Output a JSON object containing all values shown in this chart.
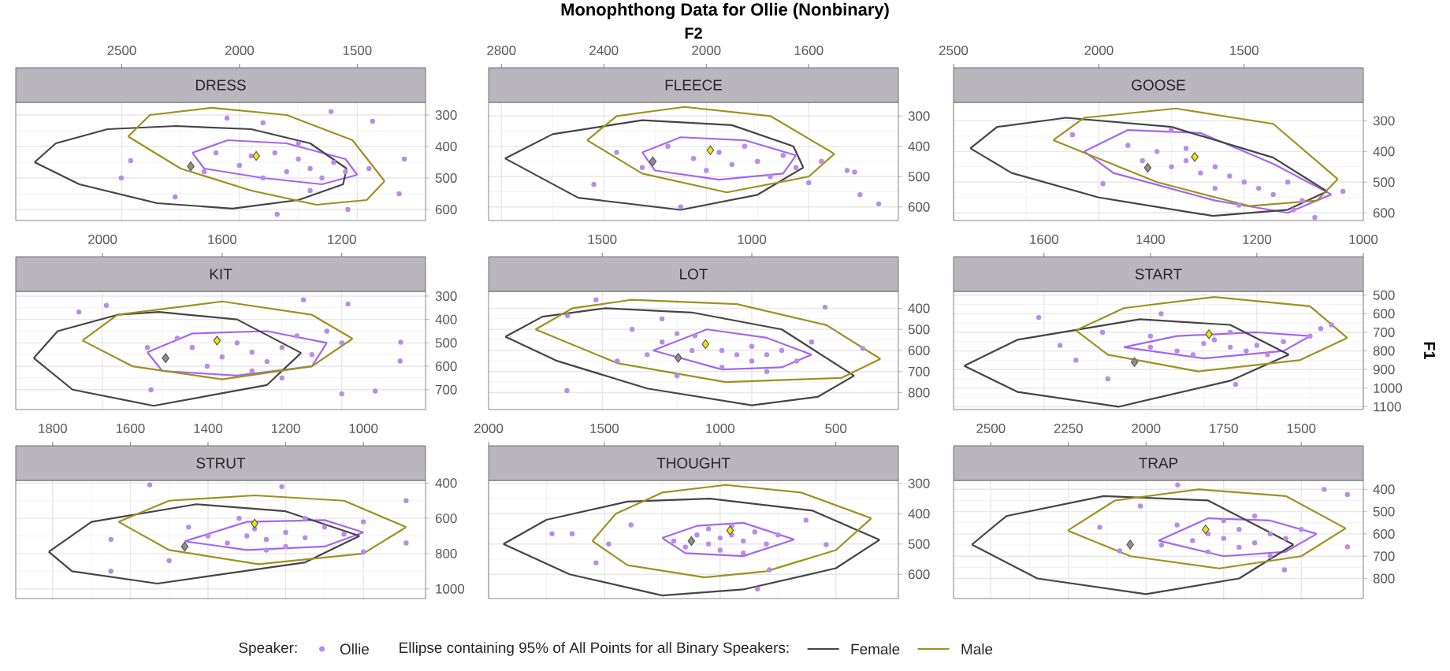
{
  "chart_data": [
    {
      "type": "scatter",
      "title": "DRESS",
      "xlim": [
        2950,
        1210
      ],
      "xticks": [
        2500,
        2000,
        1500
      ],
      "ylim": [
        635,
        260
      ],
      "yticks": [
        300,
        400,
        500,
        600
      ],
      "grid": true,
      "series": [
        {
          "color": "#b98ce8",
          "marker": "circle",
          "x": [
            1611,
            1435,
            1300,
            1322,
            2502,
            2462,
            2273,
            1840,
            1540,
            2053,
            1900,
            1850,
            1750,
            1700,
            1950,
            1800,
            1650,
            2000,
            1900,
            1600,
            2100,
            1750,
            1550,
            2150,
            1700,
            1450
          ],
          "values": [
            289,
            320,
            440,
            550,
            500,
            445,
            560,
            615,
            600,
            310,
            325,
            420,
            440,
            470,
            430,
            480,
            500,
            460,
            500,
            450,
            420,
            390,
            480,
            480,
            540,
            470
          ]
        },
        {
          "type": "line",
          "color": "#a566f2",
          "x": [
            2200,
            2050,
            1800,
            1550,
            1500
          ],
          "values": [
            420,
            380,
            390,
            440,
            490
          ]
        },
        {
          "type": "line",
          "color": "#a566f2",
          "x": [
            1500,
            1650,
            1900,
            2150,
            2200
          ],
          "values": [
            490,
            520,
            500,
            470,
            420
          ]
        },
        {
          "type": "line",
          "color": "#454545",
          "x": [
            2870,
            2780,
            2560,
            2270,
            1950,
            1700,
            1545
          ],
          "values": [
            450,
            390,
            345,
            335,
            345,
            390,
            470
          ]
        },
        {
          "type": "line",
          "color": "#454545",
          "x": [
            1545,
            1560,
            1750,
            2030,
            2350,
            2680,
            2870
          ],
          "values": [
            470,
            520,
            570,
            597,
            580,
            520,
            450
          ]
        },
        {
          "type": "line",
          "color": "#a09020",
          "x": [
            2473,
            2380,
            2118,
            1800,
            1520,
            1384
          ],
          "values": [
            368,
            300,
            277,
            300,
            380,
            510
          ]
        },
        {
          "type": "line",
          "color": "#a09020",
          "x": [
            1384,
            1460,
            1673,
            1950,
            2250,
            2473
          ],
          "values": [
            510,
            570,
            585,
            540,
            470,
            368
          ]
        },
        {
          "color": "#8f8f8f",
          "marker": "diamond",
          "x": [
            2207
          ],
          "values": [
            463
          ]
        },
        {
          "color": "#f2e600",
          "marker": "diamond",
          "x": [
            1929
          ],
          "values": [
            430
          ]
        }
      ]
    },
    {
      "type": "scatter",
      "title": "FLEECE",
      "xlabel": "F2",
      "annotations": [
        "Monophthong Data for Ollie (Nonbinary)"
      ],
      "xlim": [
        2850,
        1250
      ],
      "xticks": [
        2800,
        2400,
        2000,
        1600
      ],
      "ylim": [
        645,
        255
      ],
      "yticks": [
        300,
        400,
        500,
        600
      ],
      "grid": true,
      "series": [
        {
          "color": "#b98ce8",
          "marker": "circle",
          "x": [
            2350,
            2250,
            2150,
            2050,
            2000,
            1950,
            1900,
            1850,
            1800,
            1750,
            1700,
            1650,
            1600,
            1550,
            1450,
            1327,
            1421,
            2439,
            2100,
            1400
          ],
          "values": [
            420,
            470,
            400,
            440,
            480,
            420,
            460,
            400,
            450,
            500,
            430,
            470,
            520,
            450,
            480,
            590,
            485,
            526,
            600,
            560
          ]
        },
        {
          "type": "line",
          "color": "#a566f2",
          "x": [
            2250,
            2100,
            1850,
            1650
          ],
          "values": [
            420,
            370,
            380,
            430
          ]
        },
        {
          "type": "line",
          "color": "#a566f2",
          "x": [
            1650,
            1700,
            1950,
            2200,
            2250
          ],
          "values": [
            430,
            490,
            510,
            480,
            420
          ]
        },
        {
          "type": "line",
          "color": "#454545",
          "x": [
            2786,
            2600,
            2250,
            1900,
            1660,
            1621
          ],
          "values": [
            440,
            360,
            314,
            330,
            400,
            470
          ]
        },
        {
          "type": "line",
          "color": "#454545",
          "x": [
            1621,
            1800,
            2100,
            2500,
            2786
          ],
          "values": [
            470,
            560,
            610,
            570,
            440
          ]
        },
        {
          "type": "line",
          "color": "#a09020",
          "x": [
            2465,
            2350,
            2085,
            1750,
            1500
          ],
          "values": [
            380,
            300,
            270,
            300,
            425
          ]
        },
        {
          "type": "line",
          "color": "#a09020",
          "x": [
            1500,
            1600,
            1920,
            2250,
            2465
          ],
          "values": [
            425,
            500,
            552,
            490,
            380
          ]
        },
        {
          "color": "#8f8f8f",
          "marker": "diamond",
          "x": [
            2209
          ],
          "values": [
            450
          ]
        },
        {
          "color": "#f2e600",
          "marker": "diamond",
          "x": [
            1984
          ],
          "values": [
            413
          ]
        }
      ]
    },
    {
      "type": "scatter",
      "title": "GOOSE",
      "xlim": [
        2500,
        1090
      ],
      "xticks": [
        2500,
        2000,
        1500
      ],
      "ylim": [
        625,
        240
      ],
      "yticks": [
        300,
        400,
        500,
        600
      ],
      "grid": true,
      "series": [
        {
          "color": "#b98ce8",
          "marker": "circle",
          "x": [
            2091,
            1160,
            1257,
            1330,
            1518,
            1986,
            1751,
            1800,
            1700,
            1650,
            1600,
            1550,
            1750,
            1500,
            1450,
            1400,
            1700,
            1850,
            1900,
            1350,
            1300,
            1600
          ],
          "values": [
            345,
            530,
            615,
            590,
            575,
            505,
            330,
            400,
            430,
            470,
            450,
            480,
            450,
            500,
            520,
            540,
            390,
            430,
            380,
            500,
            560,
            520
          ]
        },
        {
          "type": "line",
          "color": "#a566f2",
          "x": [
            2050,
            1900,
            1650,
            1400,
            1200
          ],
          "values": [
            400,
            330,
            340,
            440,
            540
          ]
        },
        {
          "type": "line",
          "color": "#a566f2",
          "x": [
            1200,
            1350,
            1600,
            1950,
            2050
          ],
          "values": [
            540,
            600,
            560,
            470,
            400
          ]
        },
        {
          "type": "line",
          "color": "#454545",
          "x": [
            2442,
            2350,
            2113,
            1750,
            1400,
            1215
          ],
          "values": [
            390,
            320,
            290,
            320,
            420,
            530
          ]
        },
        {
          "type": "line",
          "color": "#454545",
          "x": [
            1215,
            1350,
            1608,
            2000,
            2300,
            2442
          ],
          "values": [
            530,
            590,
            610,
            550,
            470,
            390
          ]
        },
        {
          "type": "line",
          "color": "#a09020",
          "x": [
            2157,
            2050,
            1735,
            1400,
            1178
          ],
          "values": [
            363,
            290,
            260,
            310,
            490
          ]
        },
        {
          "type": "line",
          "color": "#a09020",
          "x": [
            1178,
            1250,
            1482,
            1800,
            2157
          ],
          "values": [
            490,
            560,
            578,
            500,
            363
          ]
        },
        {
          "color": "#8f8f8f",
          "marker": "diamond",
          "x": [
            1832
          ],
          "values": [
            453
          ]
        },
        {
          "color": "#f2e600",
          "marker": "diamond",
          "x": [
            1670
          ],
          "values": [
            418
          ]
        }
      ]
    },
    {
      "type": "scatter",
      "title": "KIT",
      "xlim": [
        2290,
        920
      ],
      "xticks": [
        2000,
        1600,
        1200
      ],
      "ylim": [
        785,
        280
      ],
      "yticks": [
        300,
        400,
        500,
        600,
        700
      ],
      "grid": true,
      "series": [
        {
          "color": "#b98ce8",
          "marker": "circle",
          "x": [
            2079,
            1987,
            1838,
            1003,
            1005,
            1088,
            1200,
            1179,
            1328,
            1700,
            1600,
            1550,
            1500,
            1450,
            1650,
            1750,
            1400,
            1350,
            1300,
            1500,
            1850,
            1250,
            1200,
            1400
          ],
          "values": [
            368,
            340,
            701,
            497,
            578,
            706,
            718,
            334,
            316,
            520,
            560,
            500,
            540,
            580,
            600,
            480,
            520,
            470,
            550,
            620,
            520,
            450,
            500,
            650
          ]
        },
        {
          "type": "line",
          "color": "#a566f2",
          "x": [
            1850,
            1700,
            1450,
            1250
          ],
          "values": [
            540,
            460,
            450,
            500
          ]
        },
        {
          "type": "line",
          "color": "#a566f2",
          "x": [
            1250,
            1300,
            1550,
            1800,
            1850
          ],
          "values": [
            500,
            600,
            640,
            620,
            540
          ]
        },
        {
          "type": "line",
          "color": "#454545",
          "x": [
            2230,
            2150,
            1950,
            1811,
            1550,
            1336
          ],
          "values": [
            565,
            450,
            380,
            368,
            400,
            543
          ]
        },
        {
          "type": "line",
          "color": "#454545",
          "x": [
            1336,
            1450,
            1829,
            2100,
            2230
          ],
          "values": [
            543,
            680,
            769,
            700,
            565
          ]
        },
        {
          "type": "line",
          "color": "#a09020",
          "x": [
            2067,
            1950,
            1600,
            1300,
            1164
          ],
          "values": [
            490,
            380,
            323,
            380,
            482
          ]
        },
        {
          "type": "line",
          "color": "#a09020",
          "x": [
            1164,
            1300,
            1600,
            1900,
            2067
          ],
          "values": [
            482,
            600,
            656,
            600,
            490
          ]
        },
        {
          "color": "#8f8f8f",
          "marker": "diamond",
          "x": [
            1789
          ],
          "values": [
            565
          ]
        },
        {
          "color": "#f2e600",
          "marker": "diamond",
          "x": [
            1617
          ],
          "values": [
            490
          ]
        }
      ]
    },
    {
      "type": "scatter",
      "title": "LOT",
      "xlim": [
        1880,
        510
      ],
      "xticks": [
        1500,
        1000
      ],
      "ylim": [
        880,
        320
      ],
      "yticks": [
        400,
        500,
        600,
        700,
        800
      ],
      "grid": true,
      "series": [
        {
          "color": "#b98ce8",
          "marker": "circle",
          "x": [
            755,
            629,
            1618,
            1521,
            1616,
            1250,
            1190,
            1100,
            1050,
            1000,
            950,
            1200,
            1300,
            1000,
            900,
            850,
            1350,
            1400,
            1100,
            950,
            1250,
            800,
            1450,
            1300
          ],
          "values": [
            395,
            590,
            790,
            360,
            435,
            520,
            530,
            600,
            620,
            580,
            620,
            600,
            560,
            650,
            600,
            650,
            620,
            500,
            680,
            700,
            720,
            560,
            650,
            450
          ]
        },
        {
          "type": "line",
          "color": "#a566f2",
          "x": [
            1330,
            1150,
            950,
            800
          ],
          "values": [
            600,
            500,
            540,
            620
          ]
        },
        {
          "type": "line",
          "color": "#a566f2",
          "x": [
            800,
            900,
            1100,
            1330
          ],
          "values": [
            620,
            680,
            690,
            600
          ]
        },
        {
          "type": "line",
          "color": "#454545",
          "x": [
            1824,
            1700,
            1490,
            1200,
            900,
            658
          ],
          "values": [
            535,
            440,
            400,
            420,
            500,
            720
          ]
        },
        {
          "type": "line",
          "color": "#454545",
          "x": [
            658,
            780,
            1000,
            1350,
            1650,
            1824
          ],
          "values": [
            720,
            820,
            860,
            780,
            650,
            535
          ]
        },
        {
          "type": "line",
          "color": "#a09020",
          "x": [
            1723,
            1600,
            1403,
            1050,
            750,
            570
          ],
          "values": [
            500,
            400,
            360,
            380,
            480,
            640
          ]
        },
        {
          "type": "line",
          "color": "#a09020",
          "x": [
            570,
            700,
            1088,
            1450,
            1723
          ],
          "values": [
            640,
            730,
            750,
            660,
            500
          ]
        },
        {
          "color": "#8f8f8f",
          "marker": "diamond",
          "x": [
            1246
          ],
          "values": [
            635
          ]
        },
        {
          "color": "#f2e600",
          "marker": "diamond",
          "x": [
            1155
          ],
          "values": [
            570
          ]
        }
      ]
    },
    {
      "type": "scatter",
      "title": "START",
      "ylabel": "F1",
      "xlim": [
        1770,
        1000
      ],
      "xticks": [
        1600,
        1400,
        1200,
        1000
      ],
      "ylim": [
        1115,
        480
      ],
      "yticks": [
        500,
        600,
        700,
        800,
        900,
        1000,
        1100
      ],
      "grid": true,
      "series": [
        {
          "color": "#b98ce8",
          "marker": "circle",
          "x": [
            1610,
            1570,
            1540,
            1480,
            1240,
            1490,
            1060,
            1380,
            1300,
            1250,
            1200,
            1350,
            1150,
            1280,
            1220,
            1100,
            1400,
            1320,
            1180,
            1250,
            1080,
            1400
          ],
          "values": [
            620,
            770,
            850,
            950,
            980,
            700,
            660,
            600,
            760,
            780,
            770,
            800,
            750,
            740,
            800,
            720,
            780,
            820,
            820,
            700,
            680,
            720
          ]
        },
        {
          "type": "line",
          "color": "#a566f2",
          "x": [
            1450,
            1350,
            1200,
            1100
          ],
          "values": [
            780,
            720,
            700,
            720
          ]
        },
        {
          "type": "line",
          "color": "#a566f2",
          "x": [
            1100,
            1150,
            1300,
            1450
          ],
          "values": [
            720,
            800,
            840,
            780
          ]
        },
        {
          "type": "line",
          "color": "#454545",
          "x": [
            1750,
            1650,
            1420,
            1250,
            1140
          ],
          "values": [
            880,
            740,
            630,
            660,
            820
          ]
        },
        {
          "type": "line",
          "color": "#454545",
          "x": [
            1140,
            1250,
            1460,
            1650,
            1750
          ],
          "values": [
            820,
            960,
            1100,
            1020,
            880
          ]
        },
        {
          "type": "line",
          "color": "#a09020",
          "x": [
            1540,
            1450,
            1280,
            1100,
            1030
          ],
          "values": [
            690,
            570,
            510,
            560,
            730
          ]
        },
        {
          "type": "line",
          "color": "#a09020",
          "x": [
            1030,
            1120,
            1310,
            1480,
            1540
          ],
          "values": [
            730,
            850,
            910,
            820,
            690
          ]
        },
        {
          "color": "#8f8f8f",
          "marker": "diamond",
          "x": [
            1430
          ],
          "values": [
            860
          ]
        },
        {
          "color": "#f2e600",
          "marker": "diamond",
          "x": [
            1290
          ],
          "values": [
            710
          ]
        }
      ]
    },
    {
      "type": "scatter",
      "title": "STRUT",
      "xlim": [
        1895,
        840
      ],
      "xticks": [
        1800,
        1600,
        1400,
        1200,
        1000
      ],
      "ylim": [
        1055,
        385
      ],
      "yticks": [
        400,
        600,
        800,
        1000
      ],
      "grid": true,
      "series": [
        {
          "color": "#b98ce8",
          "marker": "circle",
          "x": [
            1650,
            1650,
            1550,
            890,
            890,
            1000,
            1210,
            1500,
            1300,
            1250,
            1200,
            1150,
            1350,
            1100,
            1280,
            1200,
            1400,
            1050,
            1150,
            1320,
            1000,
            1450,
            1250
          ],
          "values": [
            900,
            720,
            410,
            500,
            740,
            790,
            420,
            840,
            700,
            720,
            680,
            710,
            740,
            650,
            660,
            760,
            700,
            690,
            600,
            600,
            620,
            650,
            780
          ]
        },
        {
          "type": "line",
          "color": "#a566f2",
          "x": [
            1460,
            1300,
            1100,
            1000
          ],
          "values": [
            730,
            620,
            610,
            680
          ]
        },
        {
          "type": "line",
          "color": "#a566f2",
          "x": [
            1000,
            1100,
            1300,
            1460
          ],
          "values": [
            680,
            760,
            780,
            730
          ]
        },
        {
          "type": "line",
          "color": "#454545",
          "x": [
            1810,
            1700,
            1430,
            1200,
            1010
          ],
          "values": [
            790,
            620,
            520,
            560,
            700
          ]
        },
        {
          "type": "line",
          "color": "#454545",
          "x": [
            1010,
            1150,
            1530,
            1750,
            1810
          ],
          "values": [
            700,
            850,
            970,
            900,
            790
          ]
        },
        {
          "type": "line",
          "color": "#a09020",
          "x": [
            1630,
            1500,
            1280,
            1050,
            890
          ],
          "values": [
            620,
            500,
            470,
            500,
            650
          ]
        },
        {
          "type": "line",
          "color": "#a09020",
          "x": [
            890,
            1000,
            1270,
            1500,
            1630
          ],
          "values": [
            650,
            800,
            860,
            780,
            620
          ]
        },
        {
          "color": "#8f8f8f",
          "marker": "diamond",
          "x": [
            1460
          ],
          "values": [
            760
          ]
        },
        {
          "color": "#f2e600",
          "marker": "diamond",
          "x": [
            1280
          ],
          "values": [
            630
          ]
        }
      ]
    },
    {
      "type": "scatter",
      "title": "THOUGHT",
      "legend": "bottom",
      "legend_title": "Speaker:",
      "annotations": [
        "Ellipse containing 95% of All Points for all Binary Speakers:"
      ],
      "xlim": [
        2000,
        230
      ],
      "xticks": [
        2000,
        1500,
        1000,
        500
      ],
      "ylim": [
        680,
        290
      ],
      "yticks": [
        300,
        400,
        500,
        600
      ],
      "grid": true,
      "series": [
        {
          "name": "Ollie",
          "color": "#b98ce8",
          "marker": "circle",
          "x": [
            1726,
            1639,
            1536,
            1385,
            1481,
            838,
            629,
            542,
            787,
            1000,
            950,
            900,
            1050,
            850,
            1100,
            1000,
            800,
            1150,
            950,
            900,
            1050,
            750,
            1200
          ],
          "values": [
            466,
            466,
            562,
            437,
            500,
            648,
            421,
            502,
            585,
            480,
            470,
            490,
            500,
            460,
            470,
            520,
            500,
            510,
            440,
            530,
            450,
            470,
            490
          ]
        },
        {
          "type": "line",
          "color": "#a566f2",
          "x": [
            1250,
            1100,
            900,
            680
          ],
          "values": [
            480,
            440,
            430,
            485
          ]
        },
        {
          "type": "line",
          "color": "#a566f2",
          "x": [
            680,
            900,
            1150,
            1250
          ],
          "values": [
            485,
            540,
            530,
            480
          ]
        },
        {
          "type": "line",
          "name": "Female",
          "color": "#454545",
          "x": [
            1936,
            1750,
            1400,
            1044,
            600,
            311
          ],
          "values": [
            500,
            420,
            360,
            350,
            390,
            486
          ]
        },
        {
          "type": "line",
          "color": "#454545",
          "x": [
            311,
            500,
            900,
            1250,
            1650,
            1936
          ],
          "values": [
            486,
            580,
            650,
            670,
            600,
            500
          ]
        },
        {
          "type": "line",
          "name": "Male",
          "color": "#a09020",
          "x": [
            1552,
            1450,
            1250,
            976,
            650,
            347
          ],
          "values": [
            490,
            400,
            330,
            305,
            330,
            415
          ]
        },
        {
          "type": "line",
          "color": "#a09020",
          "x": [
            347,
            500,
            800,
            1067,
            1400,
            1552
          ],
          "values": [
            415,
            520,
            590,
            610,
            570,
            490
          ]
        },
        {
          "color": "#8f8f8f",
          "marker": "diamond",
          "x": [
            1124
          ],
          "values": [
            490
          ]
        },
        {
          "color": "#f2e600",
          "marker": "diamond",
          "x": [
            957
          ],
          "values": [
            455
          ]
        }
      ]
    },
    {
      "type": "scatter",
      "title": "TRAP",
      "xlim": [
        2620,
        1300
      ],
      "xticks": [
        2500,
        2250,
        2000,
        1750,
        1500
      ],
      "ylim": [
        890,
        360
      ],
      "yticks": [
        400,
        500,
        600,
        700,
        800
      ],
      "grid": true,
      "series": [
        {
          "color": "#b98ce8",
          "marker": "circle",
          "x": [
            1426,
            1351,
            1351,
            1554,
            2149,
            2085,
            1898,
            2018,
            1800,
            1750,
            1700,
            1650,
            1850,
            1600,
            1700,
            1550,
            1900,
            1750,
            1650,
            1500,
            1800,
            1600,
            1950
          ],
          "values": [
            400,
            423,
            658,
            761,
            570,
            676,
            380,
            475,
            600,
            620,
            580,
            640,
            630,
            600,
            660,
            620,
            560,
            540,
            520,
            580,
            680,
            700,
            650
          ]
        },
        {
          "type": "line",
          "color": "#a566f2",
          "x": [
            1960,
            1800,
            1600,
            1450
          ],
          "values": [
            630,
            530,
            540,
            600
          ]
        },
        {
          "type": "line",
          "color": "#a566f2",
          "x": [
            1450,
            1550,
            1750,
            1960
          ],
          "values": [
            600,
            680,
            700,
            630
          ]
        },
        {
          "type": "line",
          "color": "#454545",
          "x": [
            2561,
            2450,
            2136,
            1800,
            1525
          ],
          "values": [
            648,
            520,
            430,
            450,
            648
          ]
        },
        {
          "type": "line",
          "color": "#454545",
          "x": [
            1525,
            1700,
            2000,
            2350,
            2561
          ],
          "values": [
            648,
            800,
            870,
            800,
            648
          ]
        },
        {
          "type": "line",
          "color": "#a09020",
          "x": [
            2252,
            2100,
            1831,
            1550,
            1357
          ],
          "values": [
            585,
            450,
            400,
            430,
            575
          ]
        },
        {
          "type": "line",
          "color": "#a09020",
          "x": [
            1357,
            1500,
            1764,
            2050,
            2252
          ],
          "values": [
            575,
            700,
            755,
            700,
            585
          ]
        },
        {
          "color": "#8f8f8f",
          "marker": "diamond",
          "x": [
            2051
          ],
          "values": [
            648
          ]
        },
        {
          "color": "#f2e600",
          "marker": "diamond",
          "x": [
            1808
          ],
          "values": [
            580
          ]
        }
      ]
    }
  ]
}
